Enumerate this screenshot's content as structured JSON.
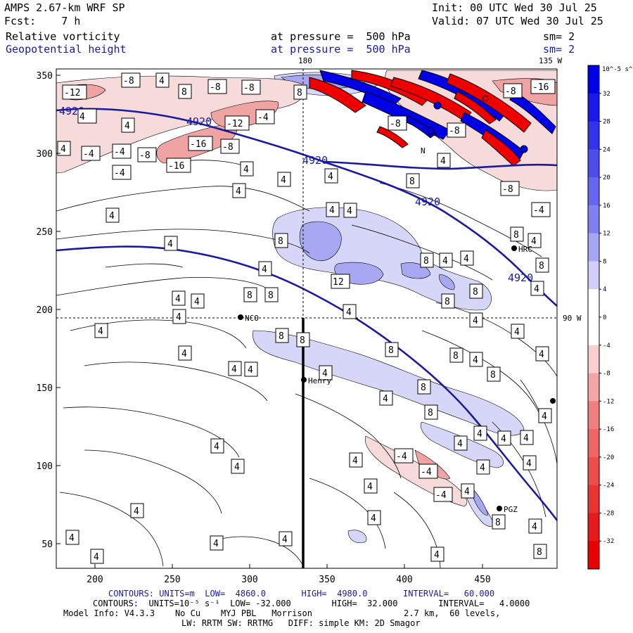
{
  "header": {
    "model": "AMPS 2.67-km WRF SP",
    "init": "Init: 00 UTC Wed 30 Jul 25",
    "fcst": "Fcst:    7 h",
    "valid": "Valid: 07 UTC Wed 30 Jul 25",
    "field1": "Relative vorticity",
    "field1_level": "at pressure =  500 hPa",
    "field1_sm": "sm= 2",
    "field2": "Geopotential height",
    "field2_level": "at pressure =  500 hPa",
    "field2_sm": "sm= 2"
  },
  "map": {
    "meridian_top_label": "180",
    "meridian_top_right_label": "135 W",
    "parallel_right_label": "90 W",
    "x_ticks": [
      "200",
      "250",
      "300",
      "350",
      "400",
      "450"
    ],
    "y_ticks": [
      "350",
      "300",
      "250",
      "200",
      "150",
      "100",
      "50"
    ],
    "stations": [
      "HRC",
      "NCO",
      "Henry",
      "PGZ",
      "N"
    ],
    "height_labels": [
      "4920",
      "4920",
      "4920",
      "4920",
      "4920"
    ],
    "vorticity_labels": [
      "4",
      "8",
      "12",
      "-4",
      "-8",
      "-12",
      "-16"
    ]
  },
  "colorbar": {
    "unit": "10^-5 s^-1",
    "ticks": [
      "32",
      "28",
      "24",
      "20",
      "16",
      "12",
      "8",
      "4",
      "0",
      "-4",
      "-8",
      "-12",
      "-16",
      "-20",
      "-24",
      "-28",
      "-32"
    ],
    "colors": [
      "#0000e6",
      "#1a1ae8",
      "#3333ea",
      "#4d4dec",
      "#6666ee",
      "#8080f0",
      "#a6a6f4",
      "#cfcff9",
      "#ffffff",
      "#ffffff",
      "#f9cfcf",
      "#f4a6a6",
      "#f08080",
      "#ee6666",
      "#ec4d4d",
      "#ea3333",
      "#e61a1a",
      "#e60000"
    ]
  },
  "footer": {
    "line1": "CONTOURS: UNITS=m  LOW=  4860.0       HIGH=  4980.0       INTERVAL=   60.000",
    "line2": "CONTOURS:  UNITS=10⁻⁵ s⁻¹  LOW= -32.000        HIGH=  32.000        INTERVAL=   4.0000",
    "line3": "Model Info: V4.3.3    No Cu    MYJ PBL   Morrison                  2.7 km,  60 levels,",
    "line4": "LW: RRTM SW: RRTMG   DIFF: simple KM: 2D Smagor"
  },
  "colors": {
    "contour_blue": "#1a1aa0",
    "positive": "#3a3ae8",
    "negative": "#e83a3a"
  }
}
